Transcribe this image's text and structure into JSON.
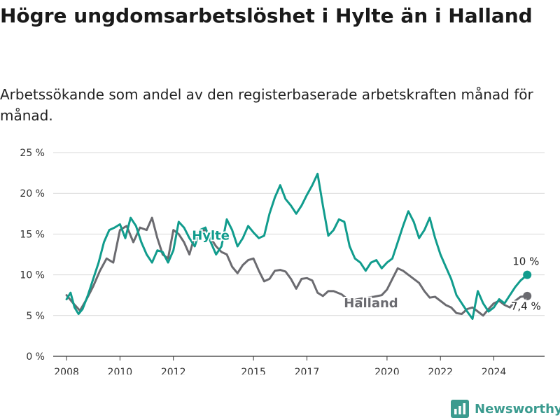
{
  "title": "Högre ungdomsarbetslöshet i Hylte än i Halland",
  "subtitle": "Arbetssökande som andel av den registerbaserade arbetskraften månad för månad.",
  "brand": {
    "name": "Newsworthy",
    "icon": "bar-chart-logo-icon",
    "color": "#3b9b8f"
  },
  "colors": {
    "hylte": "#119c8d",
    "halland": "#6b6b70",
    "grid": "#d9d9d9"
  },
  "chart_data": {
    "type": "line",
    "title": "Högre ungdomsarbetslöshet i Hylte än i Halland",
    "subtitle": "Arbetssökande som andel av den registerbaserade arbetskraften månad för månad.",
    "xlabel": "",
    "ylabel": "",
    "xlim": [
      2007.5,
      2025.9
    ],
    "ylim": [
      0,
      25
    ],
    "grid": true,
    "legend": "inline labels",
    "x_ticks": [
      {
        "value": 2008,
        "label": "2008"
      },
      {
        "value": 2010,
        "label": "2010"
      },
      {
        "value": 2012,
        "label": "2012"
      },
      {
        "value": 2015,
        "label": "2015"
      },
      {
        "value": 2017,
        "label": "2017"
      },
      {
        "value": 2020,
        "label": "2020"
      },
      {
        "value": 2022,
        "label": "2022"
      },
      {
        "value": 2024,
        "label": "2024"
      }
    ],
    "y_ticks": [
      {
        "value": 0,
        "label": "0 %"
      },
      {
        "value": 5,
        "label": "5 %"
      },
      {
        "value": 10,
        "label": "10 %"
      },
      {
        "value": 15,
        "label": "15 %"
      },
      {
        "value": 20,
        "label": "20 %"
      },
      {
        "value": 25,
        "label": "25 %"
      }
    ],
    "series": [
      {
        "name": "Halland",
        "color": "#6b6b70",
        "end_label": "7,4 %",
        "points": [
          [
            2008.0,
            7.5
          ],
          [
            2008.25,
            6.5
          ],
          [
            2008.5,
            5.6
          ],
          [
            2008.75,
            7.0
          ],
          [
            2009.0,
            8.6
          ],
          [
            2009.25,
            10.5
          ],
          [
            2009.5,
            12.0
          ],
          [
            2009.75,
            11.5
          ],
          [
            2010.0,
            15.5
          ],
          [
            2010.25,
            16.0
          ],
          [
            2010.5,
            14.0
          ],
          [
            2010.75,
            15.8
          ],
          [
            2011.0,
            15.5
          ],
          [
            2011.2,
            17.0
          ],
          [
            2011.4,
            14.5
          ],
          [
            2011.6,
            12.5
          ],
          [
            2011.8,
            12.0
          ],
          [
            2012.0,
            15.5
          ],
          [
            2012.2,
            15.0
          ],
          [
            2012.4,
            14.0
          ],
          [
            2012.6,
            12.5
          ],
          [
            2012.8,
            14.8
          ],
          [
            2013.0,
            15.3
          ],
          [
            2013.2,
            15.5
          ],
          [
            2013.4,
            14.5
          ],
          [
            2013.6,
            13.5
          ],
          [
            2013.8,
            12.8
          ],
          [
            2014.0,
            12.5
          ],
          [
            2014.2,
            11.0
          ],
          [
            2014.4,
            10.2
          ],
          [
            2014.6,
            11.2
          ],
          [
            2014.8,
            11.8
          ],
          [
            2015.0,
            12.0
          ],
          [
            2015.2,
            10.5
          ],
          [
            2015.4,
            9.2
          ],
          [
            2015.6,
            9.5
          ],
          [
            2015.8,
            10.5
          ],
          [
            2016.0,
            10.6
          ],
          [
            2016.2,
            10.4
          ],
          [
            2016.4,
            9.5
          ],
          [
            2016.6,
            8.3
          ],
          [
            2016.8,
            9.5
          ],
          [
            2017.0,
            9.6
          ],
          [
            2017.2,
            9.3
          ],
          [
            2017.4,
            7.8
          ],
          [
            2017.6,
            7.4
          ],
          [
            2017.8,
            8.0
          ],
          [
            2018.0,
            8.0
          ],
          [
            2018.3,
            7.6
          ],
          [
            2018.6,
            6.8
          ],
          [
            2018.9,
            7.0
          ],
          [
            2019.2,
            7.2
          ],
          [
            2019.5,
            7.3
          ],
          [
            2019.8,
            7.5
          ],
          [
            2020.0,
            8.2
          ],
          [
            2020.2,
            9.5
          ],
          [
            2020.4,
            10.8
          ],
          [
            2020.6,
            10.5
          ],
          [
            2020.8,
            10.0
          ],
          [
            2021.0,
            9.5
          ],
          [
            2021.2,
            9.0
          ],
          [
            2021.4,
            8.0
          ],
          [
            2021.6,
            7.2
          ],
          [
            2021.8,
            7.3
          ],
          [
            2022.0,
            6.8
          ],
          [
            2022.2,
            6.3
          ],
          [
            2022.4,
            6.0
          ],
          [
            2022.6,
            5.3
          ],
          [
            2022.8,
            5.2
          ],
          [
            2023.0,
            5.8
          ],
          [
            2023.2,
            6.0
          ],
          [
            2023.4,
            5.5
          ],
          [
            2023.6,
            5.0
          ],
          [
            2023.8,
            5.8
          ],
          [
            2024.0,
            6.5
          ],
          [
            2024.2,
            6.8
          ],
          [
            2024.4,
            6.3
          ],
          [
            2024.6,
            6.0
          ],
          [
            2024.8,
            6.8
          ],
          [
            2025.0,
            7.3
          ],
          [
            2025.25,
            7.4
          ]
        ]
      },
      {
        "name": "Hylte",
        "color": "#119c8d",
        "end_label": "10 %",
        "points": [
          [
            2008.0,
            7.0
          ],
          [
            2008.15,
            7.8
          ],
          [
            2008.3,
            6.0
          ],
          [
            2008.45,
            5.2
          ],
          [
            2008.6,
            5.8
          ],
          [
            2008.8,
            7.5
          ],
          [
            2009.0,
            9.5
          ],
          [
            2009.2,
            11.5
          ],
          [
            2009.4,
            14.0
          ],
          [
            2009.6,
            15.5
          ],
          [
            2009.8,
            15.8
          ],
          [
            2010.0,
            16.2
          ],
          [
            2010.2,
            14.5
          ],
          [
            2010.4,
            17.0
          ],
          [
            2010.6,
            16.0
          ],
          [
            2010.8,
            14.0
          ],
          [
            2011.0,
            12.5
          ],
          [
            2011.2,
            11.5
          ],
          [
            2011.4,
            13.0
          ],
          [
            2011.6,
            12.8
          ],
          [
            2011.8,
            11.5
          ],
          [
            2012.0,
            13.0
          ],
          [
            2012.2,
            16.5
          ],
          [
            2012.4,
            15.8
          ],
          [
            2012.6,
            14.5
          ],
          [
            2012.8,
            13.5
          ],
          [
            2013.0,
            15.5
          ],
          [
            2013.2,
            15.8
          ],
          [
            2013.4,
            14.0
          ],
          [
            2013.6,
            12.5
          ],
          [
            2013.8,
            13.5
          ],
          [
            2014.0,
            16.8
          ],
          [
            2014.2,
            15.5
          ],
          [
            2014.4,
            13.5
          ],
          [
            2014.6,
            14.5
          ],
          [
            2014.8,
            16.0
          ],
          [
            2015.0,
            15.2
          ],
          [
            2015.2,
            14.5
          ],
          [
            2015.4,
            14.8
          ],
          [
            2015.6,
            17.5
          ],
          [
            2015.8,
            19.5
          ],
          [
            2016.0,
            21.0
          ],
          [
            2016.2,
            19.3
          ],
          [
            2016.4,
            18.5
          ],
          [
            2016.6,
            17.5
          ],
          [
            2016.8,
            18.5
          ],
          [
            2017.0,
            19.8
          ],
          [
            2017.2,
            21.0
          ],
          [
            2017.4,
            22.4
          ],
          [
            2017.6,
            18.5
          ],
          [
            2017.8,
            14.8
          ],
          [
            2018.0,
            15.5
          ],
          [
            2018.2,
            16.8
          ],
          [
            2018.4,
            16.5
          ],
          [
            2018.6,
            13.5
          ],
          [
            2018.8,
            12.0
          ],
          [
            2019.0,
            11.5
          ],
          [
            2019.2,
            10.5
          ],
          [
            2019.4,
            11.5
          ],
          [
            2019.6,
            11.8
          ],
          [
            2019.8,
            10.8
          ],
          [
            2020.0,
            11.5
          ],
          [
            2020.2,
            12.0
          ],
          [
            2020.4,
            14.0
          ],
          [
            2020.6,
            16.0
          ],
          [
            2020.8,
            17.8
          ],
          [
            2021.0,
            16.5
          ],
          [
            2021.2,
            14.5
          ],
          [
            2021.4,
            15.5
          ],
          [
            2021.6,
            17.0
          ],
          [
            2021.8,
            14.5
          ],
          [
            2022.0,
            12.5
          ],
          [
            2022.2,
            11.0
          ],
          [
            2022.4,
            9.5
          ],
          [
            2022.6,
            7.5
          ],
          [
            2022.8,
            6.5
          ],
          [
            2023.0,
            5.5
          ],
          [
            2023.2,
            4.6
          ],
          [
            2023.4,
            8.0
          ],
          [
            2023.6,
            6.5
          ],
          [
            2023.8,
            5.5
          ],
          [
            2024.0,
            6.0
          ],
          [
            2024.2,
            7.0
          ],
          [
            2024.4,
            6.5
          ],
          [
            2024.6,
            7.5
          ],
          [
            2024.8,
            8.5
          ],
          [
            2025.0,
            9.3
          ],
          [
            2025.25,
            10.0
          ]
        ]
      }
    ],
    "annotations": [
      {
        "text": "Hylte",
        "series": "Hylte",
        "x": 2013.4,
        "y": 14.3
      },
      {
        "text": "Halland",
        "series": "Halland",
        "x": 2019.4,
        "y": 6.0
      },
      {
        "text": "10 %",
        "series": "Hylte",
        "x": 2025.2,
        "y": 11.2
      },
      {
        "text": "7,4 %",
        "series": "Halland",
        "x": 2025.2,
        "y": 5.7
      }
    ]
  }
}
